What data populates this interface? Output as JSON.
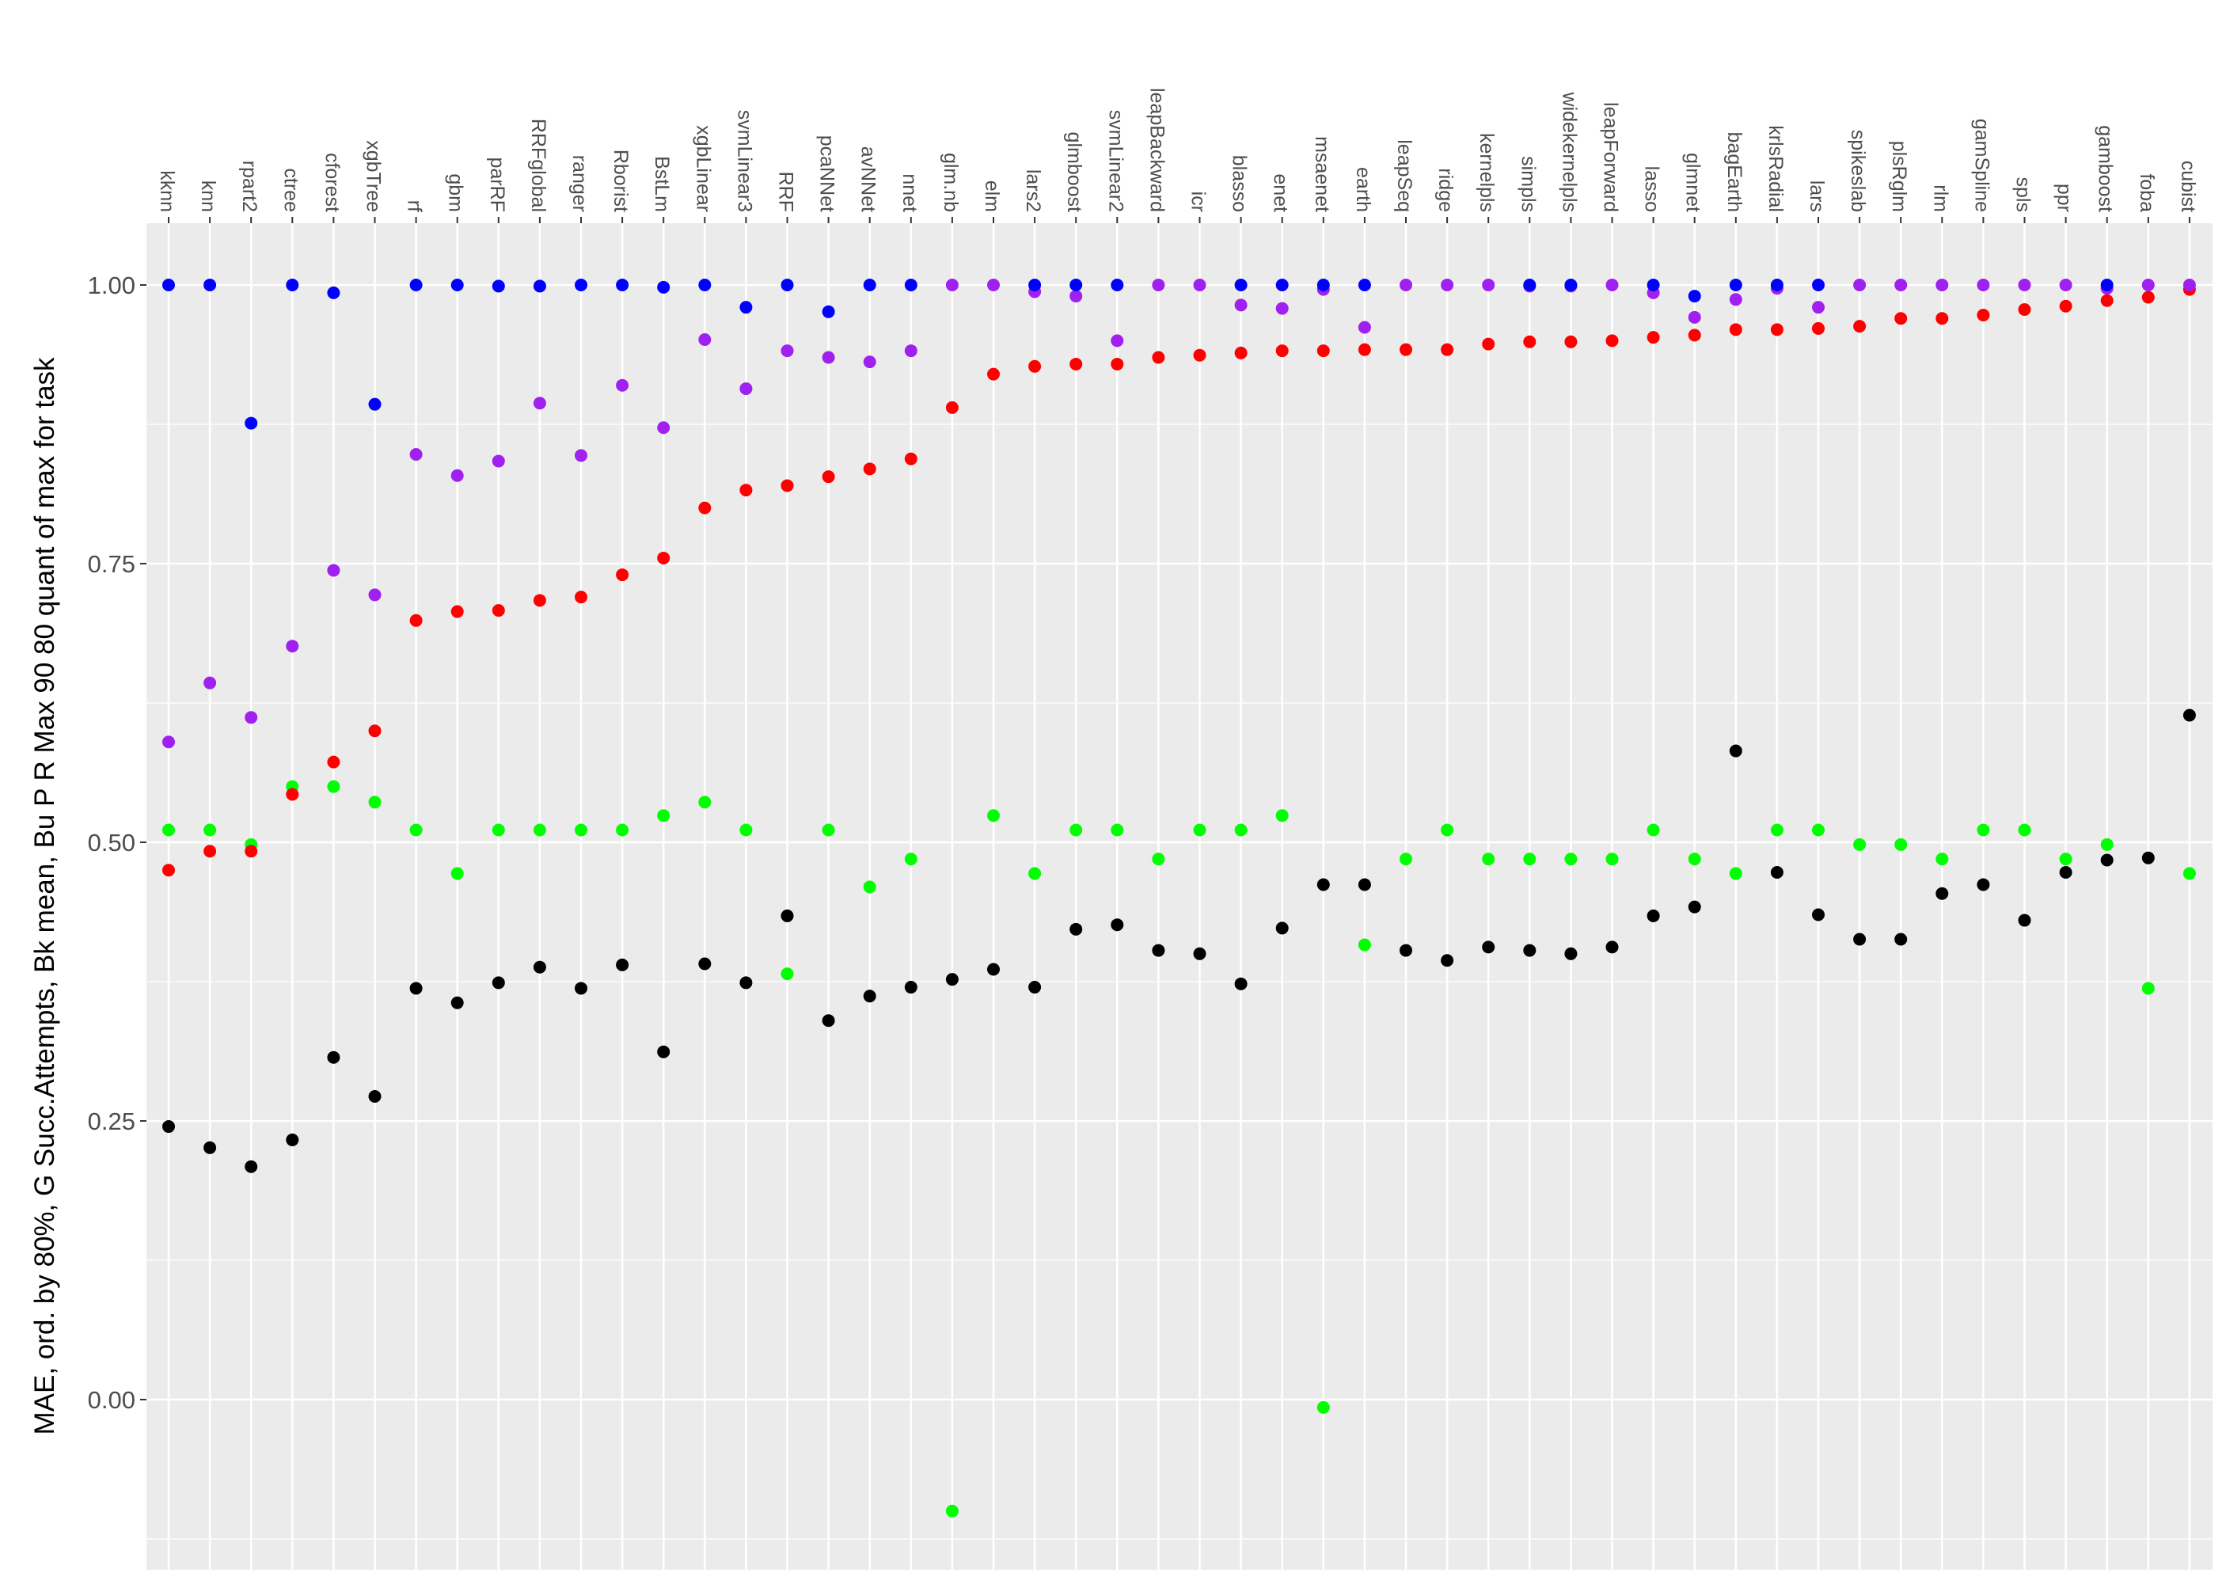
{
  "chart_data": {
    "type": "scatter",
    "title": "",
    "xlabel": "",
    "ylabel": "MAE, ord. by 80%, G Succ.Attempts, Bk mean, Bu P R Max 90 80 quant of max for task",
    "ylim": [
      -0.155,
      1.11
    ],
    "yticks": [
      0.0,
      0.25,
      0.5,
      0.75,
      1.0
    ],
    "ytick_labels": [
      "0.00",
      "0.25",
      "0.50",
      "0.75",
      "1.00"
    ],
    "x_axis_position": "top",
    "grid": true,
    "legend": "none",
    "categories": [
      "kknn",
      "knn",
      "rpart2",
      "ctree",
      "cforest",
      "xgbTree",
      "rf",
      "gbm",
      "parRF",
      "RRFglobal",
      "ranger",
      "Rborist",
      "BstLm",
      "xgbLinear",
      "svmLinear3",
      "RRF",
      "pcaNNet",
      "avNNet",
      "nnet",
      "glm.nb",
      "elm",
      "lars2",
      "glmboost",
      "svmLinear2",
      "leapBackward",
      "icr",
      "blasso",
      "enet",
      "msaenet",
      "earth",
      "leapSeq",
      "ridge",
      "kernelpls",
      "simpls",
      "widekernelpls",
      "leapForward",
      "lasso",
      "glmnet",
      "bagEarth",
      "krlsRadial",
      "lars",
      "spikeslab",
      "plsRglm",
      "rlm",
      "gamSpline",
      "spls",
      "ppr",
      "gamboost",
      "foba",
      "cubist"
    ],
    "series": [
      {
        "color": "#000000",
        "values": [
          0.245,
          0.226,
          0.209,
          0.233,
          0.307,
          0.272,
          0.369,
          0.356,
          0.374,
          0.388,
          0.369,
          0.39,
          0.312,
          0.391,
          0.374,
          0.434,
          0.34,
          0.362,
          0.37,
          0.377,
          0.386,
          0.37,
          0.422,
          0.426,
          0.403,
          0.4,
          0.373,
          0.423,
          0.462,
          0.462,
          0.403,
          0.394,
          0.406,
          0.403,
          0.4,
          0.406,
          0.434,
          0.442,
          0.582,
          0.473,
          0.435,
          0.413,
          0.413,
          0.454,
          0.462,
          0.43,
          0.473,
          0.484,
          0.486,
          0.614
        ]
      },
      {
        "color": "#00ff00",
        "values": [
          0.511,
          0.511,
          0.498,
          0.55,
          0.55,
          0.536,
          0.511,
          0.472,
          0.511,
          0.511,
          0.511,
          0.511,
          0.524,
          0.536,
          0.511,
          0.382,
          0.511,
          0.46,
          0.485,
          -0.1,
          0.524,
          0.472,
          0.511,
          0.511,
          0.485,
          0.511,
          0.511,
          0.524,
          -0.007,
          0.408,
          0.485,
          0.511,
          0.485,
          0.485,
          0.485,
          0.485,
          0.511,
          0.485,
          0.472,
          0.511,
          0.511,
          0.498,
          0.498,
          0.485,
          0.511,
          0.511,
          0.485,
          0.498,
          0.369,
          0.472
        ]
      },
      {
        "color": "#ff0000",
        "values": [
          0.475,
          0.492,
          0.492,
          0.543,
          0.572,
          0.6,
          0.699,
          0.707,
          0.708,
          0.717,
          0.72,
          0.74,
          0.755,
          0.8,
          0.816,
          0.82,
          0.828,
          0.835,
          0.844,
          0.89,
          0.92,
          0.927,
          0.929,
          0.929,
          0.935,
          0.937,
          0.939,
          0.941,
          0.941,
          0.942,
          0.942,
          0.942,
          0.947,
          0.949,
          0.949,
          0.95,
          0.953,
          0.955,
          0.96,
          0.96,
          0.961,
          0.963,
          0.97,
          0.97,
          0.973,
          0.978,
          0.981,
          0.986,
          0.989,
          0.996
        ]
      },
      {
        "color": "#a020f0",
        "values": [
          0.59,
          0.643,
          0.612,
          0.676,
          0.744,
          0.722,
          0.848,
          0.829,
          0.842,
          0.894,
          0.847,
          0.91,
          0.872,
          0.951,
          0.907,
          0.941,
          0.935,
          0.931,
          0.941,
          1.0,
          1.0,
          0.994,
          0.99,
          0.95,
          1.0,
          1.0,
          0.982,
          0.979,
          0.996,
          0.962,
          1.0,
          1.0,
          1.0,
          0.999,
          0.999,
          1.0,
          0.993,
          0.971,
          0.987,
          0.997,
          0.98,
          1.0,
          1.0,
          1.0,
          1.0,
          1.0,
          1.0,
          0.997,
          1.0,
          1.0
        ]
      },
      {
        "color": "#0000ff",
        "values": [
          1.0,
          1.0,
          0.876,
          1.0,
          0.993,
          0.893,
          1.0,
          1.0,
          0.999,
          0.999,
          1.0,
          1.0,
          0.998,
          1.0,
          0.98,
          1.0,
          0.976,
          1.0,
          1.0,
          null,
          null,
          1.0,
          1.0,
          1.0,
          null,
          null,
          1.0,
          1.0,
          1.0,
          1.0,
          null,
          null,
          null,
          1.0,
          1.0,
          null,
          1.0,
          0.99,
          1.0,
          1.0,
          1.0,
          null,
          null,
          null,
          null,
          null,
          null,
          1.0,
          null,
          null
        ]
      }
    ]
  }
}
